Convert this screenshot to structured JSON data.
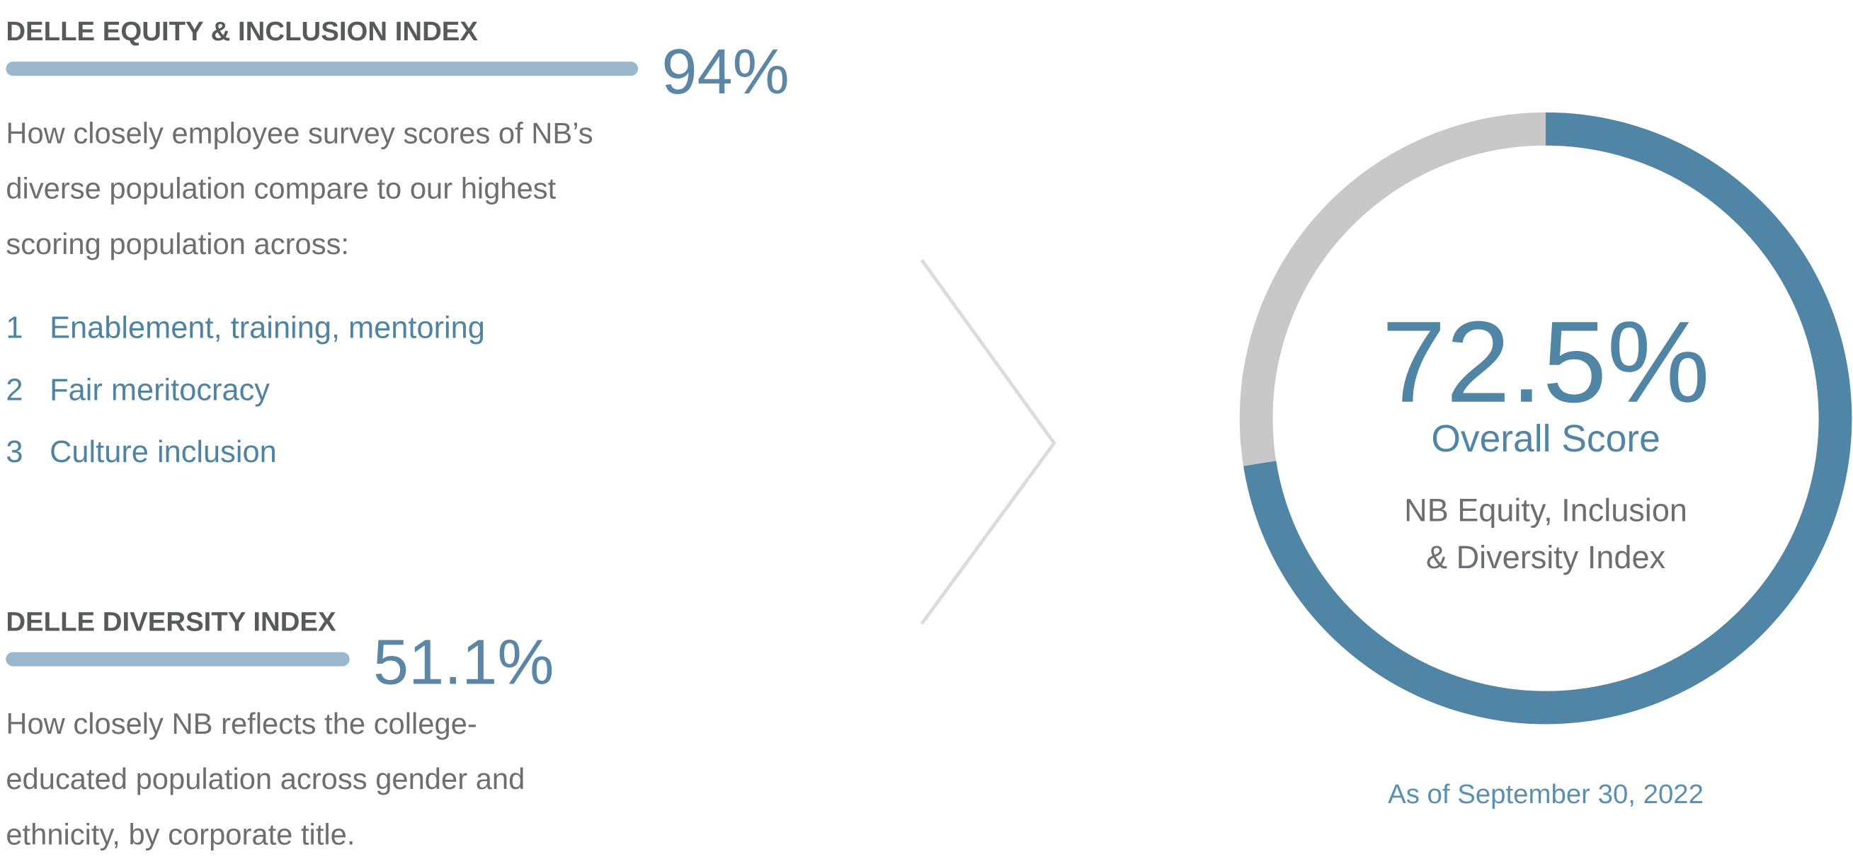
{
  "indexes": [
    {
      "title": "DELLE EQUITY & INCLUSION INDEX",
      "value": 94,
      "value_label": "94%",
      "xlim": [
        0,
        100
      ],
      "color": "#9bb7cc",
      "description": [
        "How closely employee survey scores of NB’s",
        "diverse population compare to our highest",
        "scoring population across:"
      ],
      "items": [
        {
          "number": 1,
          "label": "Enablement, training, mentoring"
        },
        {
          "number": 2,
          "label": "Fair meritocracy"
        },
        {
          "number": 3,
          "label": "Culture inclusion"
        }
      ]
    },
    {
      "title": "DELLE DIVERSITY INDEX",
      "value": 51.1,
      "value_label": "51.1%",
      "xlim": [
        0,
        100
      ],
      "color": "#9bb7cc",
      "description": [
        "How closely NB reflects the college-",
        "educated population across gender and",
        "ethnicity, by corporate title."
      ],
      "items": []
    }
  ],
  "chart_data": {
    "type": "donut",
    "value": 72.5,
    "value_label": "72.5%",
    "ylim": [
      0,
      100
    ],
    "label": "Overall Score",
    "subtitle": [
      "NB Equity, Inclusion",
      "& Diversity Index"
    ],
    "note": "As of September 30, 2022",
    "color": "#5085a5",
    "track_color": "#c8c8c8"
  }
}
